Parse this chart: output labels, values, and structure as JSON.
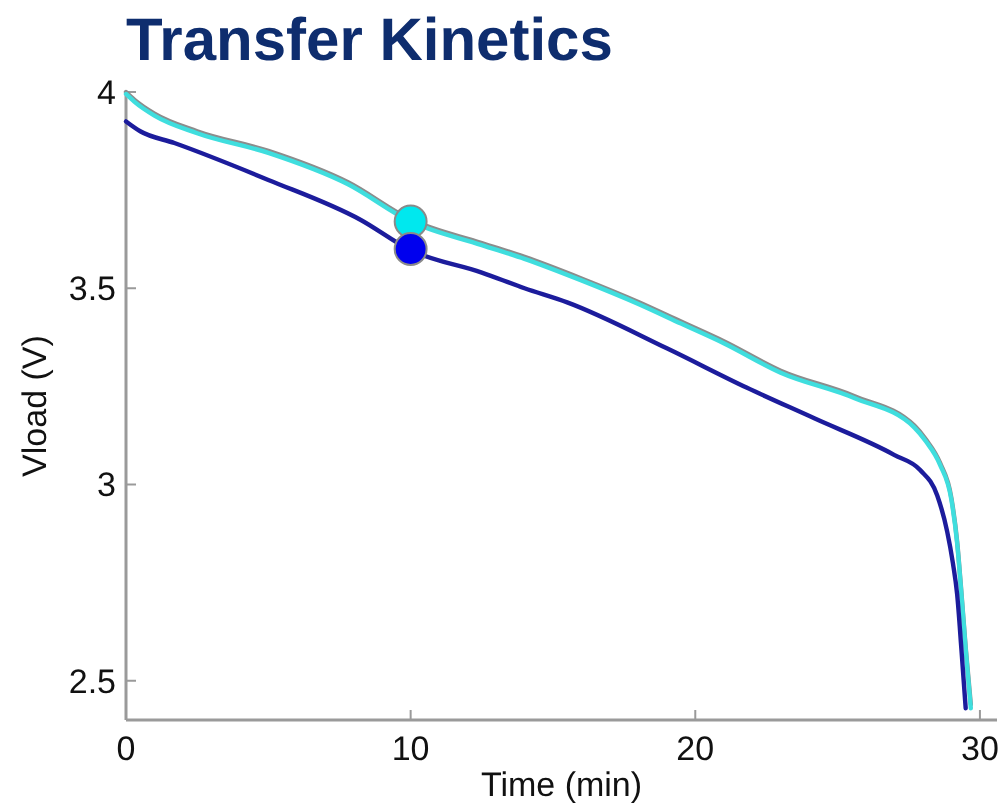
{
  "chart_data": {
    "type": "line",
    "title": "Transfer Kinetics",
    "xlabel": "Time (min)",
    "ylabel": "Vload (V)",
    "xlim": [
      0,
      30.6
    ],
    "ylim": [
      2.4,
      4.0
    ],
    "xticks": [
      0,
      10,
      20,
      30
    ],
    "yticks": [
      2.5,
      3,
      3.5,
      4
    ],
    "series": [
      {
        "color": "#8c8c8c",
        "x": [
          0,
          0.3,
          1,
          2.5,
          5,
          7.8,
          10,
          12.5,
          14,
          16,
          18,
          19.5,
          21,
          23,
          25.6,
          27.7,
          28.1,
          28.6,
          29,
          29.2,
          29.35,
          29.5,
          29.68
        ],
        "values": [
          4.0,
          3.98,
          3.945,
          3.9,
          3.85,
          3.77,
          3.675,
          3.615,
          3.58,
          3.525,
          3.465,
          3.415,
          3.365,
          3.29,
          3.225,
          3.15,
          3.115,
          3.055,
          2.965,
          2.855,
          2.725,
          2.585,
          2.44
        ]
      },
      {
        "color": "#3fdede",
        "x": [
          0,
          0.3,
          1,
          2.5,
          5,
          7.8,
          10,
          12.5,
          14,
          16,
          18,
          19.5,
          21,
          23,
          25.6,
          27.7,
          28.1,
          28.6,
          29,
          29.2,
          29.35,
          29.5,
          29.68
        ],
        "values": [
          3.995,
          3.975,
          3.94,
          3.895,
          3.845,
          3.765,
          3.67,
          3.61,
          3.575,
          3.52,
          3.46,
          3.41,
          3.36,
          3.285,
          3.22,
          3.145,
          3.11,
          3.05,
          2.96,
          2.85,
          2.72,
          2.58,
          2.43
        ]
      },
      {
        "color": "#1c1c9c",
        "x": [
          0,
          0.5,
          1.7,
          5,
          8.25,
          10,
          12.5,
          14,
          15.5,
          19,
          21.8,
          24.2,
          27,
          27.9,
          28.5,
          28.85,
          29.05,
          29.2,
          29.35,
          29.5
        ],
        "values": [
          3.925,
          3.9,
          3.87,
          3.776,
          3.674,
          3.597,
          3.54,
          3.5,
          3.464,
          3.347,
          3.247,
          3.168,
          3.075,
          3.037,
          2.972,
          2.88,
          2.8,
          2.72,
          2.58,
          2.43
        ]
      },
      {
        "type": "scatter",
        "marker": "circle",
        "color": "#00e8ee",
        "x": [
          10
        ],
        "values": [
          3.67
        ]
      },
      {
        "type": "scatter",
        "marker": "circle",
        "color": "#0000ee",
        "x": [
          10
        ],
        "values": [
          3.6
        ]
      }
    ]
  }
}
